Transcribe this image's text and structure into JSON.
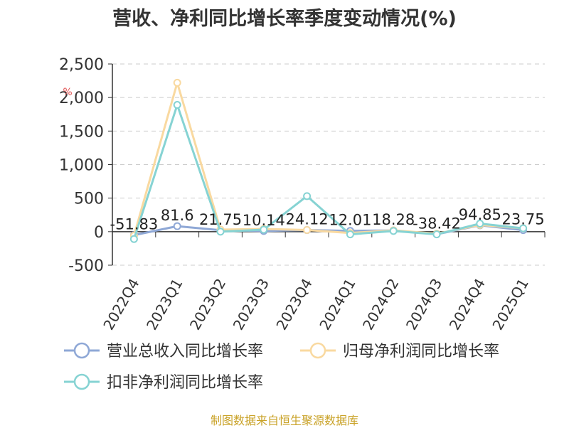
{
  "source_note": "制图数据来自恒生聚源数据库",
  "chart_data": {
    "type": "line",
    "title": "营收、净利同比增长率季度变动情况(%)",
    "ylabel": "%",
    "categories": [
      "2022Q4",
      "2023Q1",
      "2023Q2",
      "2023Q3",
      "2023Q4",
      "2024Q1",
      "2024Q2",
      "2024Q3",
      "2024Q4",
      "2025Q1"
    ],
    "ylim": [
      -500,
      2500
    ],
    "yticks": [
      -500,
      0,
      500,
      1000,
      1500,
      2000,
      2500
    ],
    "ytick_labels": [
      "-500",
      "0",
      "500",
      "1,000",
      "1,500",
      "2,000",
      "2,500"
    ],
    "grid": true,
    "legend_position": "bottom",
    "series": [
      {
        "name": "营业总收入同比增长率",
        "color": "#8fa8d6",
        "values": [
          -51.83,
          81.6,
          21.75,
          10.14,
          24.12,
          12.01,
          18.28,
          -38.42,
          94.85,
          23.75
        ],
        "labels": [
          "-51.83",
          "81.6",
          "21.75",
          "10.14",
          "24.12",
          "12.01",
          "18.28",
          "-38.42",
          "94.85",
          "23.75"
        ]
      },
      {
        "name": "归母净利润同比增长率",
        "color": "#f9d9a0",
        "values": [
          -60,
          2220,
          30,
          40,
          25,
          -20,
          20,
          -30,
          100,
          50
        ]
      },
      {
        "name": "扣非净利润同比增长率",
        "color": "#86d3d3",
        "values": [
          -110,
          1890,
          0,
          30,
          530,
          -40,
          10,
          -40,
          120,
          50
        ]
      }
    ]
  }
}
